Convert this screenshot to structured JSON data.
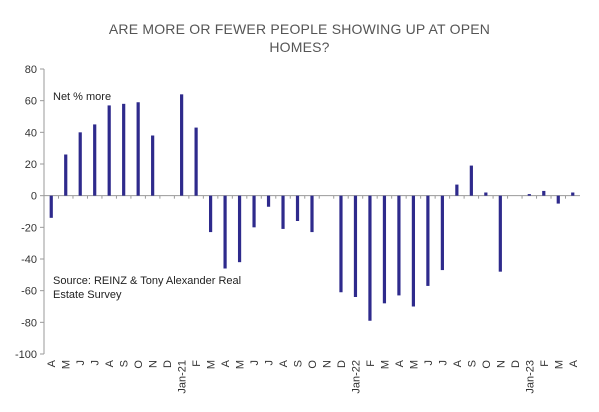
{
  "chart_data": {
    "type": "bar",
    "title_lines": [
      "ARE MORE OR FEWER PEOPLE SHOWING UP AT OPEN",
      "HOMES?"
    ],
    "xlabel": "",
    "ylabel": "",
    "ylim": [
      -100,
      80
    ],
    "yticks": [
      80,
      60,
      40,
      20,
      0,
      -20,
      -40,
      -60,
      -80,
      -100
    ],
    "grid": false,
    "bar_color": "#2e2a8c",
    "annotations": {
      "series_label": "Net % more",
      "source_lines": [
        "Source: REINZ & Tony Alexander Real",
        "Estate Survey"
      ]
    },
    "categories": [
      "A",
      "M",
      "J",
      "J",
      "A",
      "S",
      "O",
      "N",
      "D",
      "Jan-21",
      "F",
      "M",
      "A",
      "M",
      "J",
      "J",
      "A",
      "S",
      "O",
      "N",
      "D",
      "Jan-22",
      "F",
      "M",
      "A",
      "M",
      "J",
      "J",
      "A",
      "S",
      "O",
      "N",
      "D",
      "Jan-23",
      "F",
      "M",
      "A"
    ],
    "values": [
      -14,
      26,
      40,
      45,
      57,
      58,
      59,
      38,
      null,
      64,
      43,
      -23,
      -46,
      -42,
      -20,
      -7,
      -21,
      -16,
      -23,
      null,
      -61,
      -64,
      -79,
      -68,
      -63,
      -70,
      -57,
      -47,
      7,
      19,
      2,
      -48,
      null,
      1,
      3,
      -5,
      2
    ]
  }
}
